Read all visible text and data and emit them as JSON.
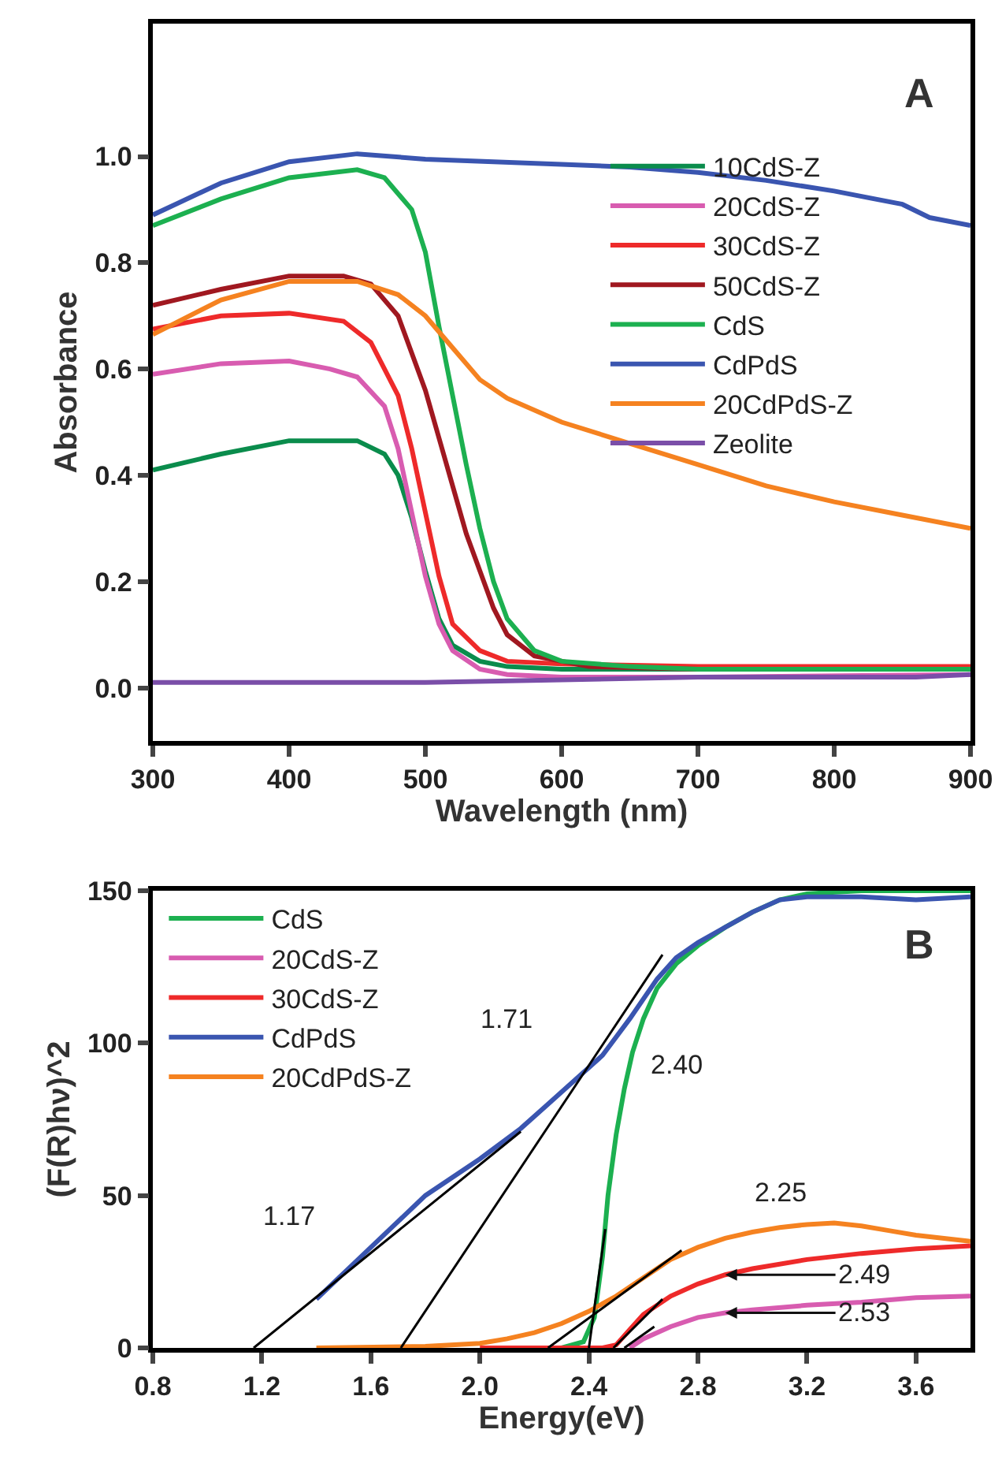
{
  "chart_data": [
    {
      "type": "line",
      "xlabel": "Wavelength (nm)",
      "ylabel": "Absorbance",
      "xlim": [
        300,
        900
      ],
      "xticks": [
        300,
        400,
        500,
        600,
        700,
        800,
        900
      ],
      "ylim": [
        -0.1,
        1.25
      ],
      "yticks": [
        {
          "value": 0,
          "label": "0.0"
        },
        0.2,
        0.4,
        0.6,
        0.8,
        {
          "value": 1,
          "label": "1.0"
        }
      ],
      "grid": false,
      "legend": "right",
      "marker": "none",
      "line_style": "solid",
      "annotations": [
        "A"
      ],
      "series": [
        {
          "name": "10CdS-Z",
          "color": "#0a8c4c",
          "x": [
            300,
            350,
            400,
            450,
            470,
            480,
            490,
            500,
            510,
            520,
            540,
            560,
            600,
            700,
            800,
            900
          ],
          "values": [
            0.41,
            0.44,
            0.465,
            0.465,
            0.44,
            0.4,
            0.32,
            0.22,
            0.13,
            0.08,
            0.05,
            0.04,
            0.035,
            0.035,
            0.035,
            0.035
          ]
        },
        {
          "name": "20CdS-Z",
          "color": "#d85cb0",
          "x": [
            300,
            350,
            400,
            430,
            450,
            470,
            480,
            490,
            500,
            510,
            520,
            540,
            560,
            600,
            700,
            900
          ],
          "values": [
            0.59,
            0.61,
            0.615,
            0.6,
            0.585,
            0.53,
            0.45,
            0.33,
            0.21,
            0.12,
            0.07,
            0.035,
            0.025,
            0.02,
            0.02,
            0.025
          ]
        },
        {
          "name": "30CdS-Z",
          "color": "#ee2a2a",
          "x": [
            300,
            350,
            400,
            440,
            460,
            480,
            490,
            500,
            510,
            520,
            540,
            560,
            600,
            700,
            900
          ],
          "values": [
            0.675,
            0.7,
            0.705,
            0.69,
            0.65,
            0.55,
            0.45,
            0.33,
            0.21,
            0.12,
            0.07,
            0.05,
            0.045,
            0.04,
            0.04
          ]
        },
        {
          "name": "50CdS-Z",
          "color": "#a01820",
          "x": [
            300,
            350,
            400,
            440,
            460,
            480,
            500,
            510,
            520,
            530,
            540,
            550,
            560,
            580,
            620,
            700,
            900
          ],
          "values": [
            0.72,
            0.75,
            0.775,
            0.775,
            0.76,
            0.7,
            0.56,
            0.47,
            0.38,
            0.29,
            0.22,
            0.15,
            0.1,
            0.06,
            0.04,
            0.035,
            0.035
          ]
        },
        {
          "name": "CdS",
          "color": "#1cb050",
          "x": [
            300,
            350,
            400,
            450,
            470,
            490,
            500,
            510,
            520,
            530,
            540,
            550,
            560,
            580,
            600,
            650,
            700,
            900
          ],
          "values": [
            0.87,
            0.92,
            0.96,
            0.975,
            0.96,
            0.9,
            0.82,
            0.68,
            0.55,
            0.42,
            0.3,
            0.2,
            0.13,
            0.07,
            0.05,
            0.04,
            0.035,
            0.035
          ]
        },
        {
          "name": "CdPdS",
          "color": "#3a55b0",
          "x": [
            300,
            350,
            400,
            450,
            500,
            600,
            650,
            700,
            750,
            800,
            850,
            870,
            900
          ],
          "values": [
            0.89,
            0.95,
            0.99,
            1.005,
            0.995,
            0.985,
            0.98,
            0.97,
            0.955,
            0.935,
            0.91,
            0.885,
            0.87
          ]
        },
        {
          "name": "20CdPdS-Z",
          "color": "#f58220",
          "x": [
            300,
            350,
            400,
            450,
            480,
            500,
            520,
            540,
            560,
            600,
            650,
            700,
            750,
            800,
            850,
            900
          ],
          "values": [
            0.665,
            0.73,
            0.765,
            0.765,
            0.74,
            0.7,
            0.64,
            0.58,
            0.545,
            0.5,
            0.46,
            0.42,
            0.38,
            0.35,
            0.325,
            0.3
          ]
        },
        {
          "name": "Zeolite",
          "color": "#7a4ea8",
          "x": [
            300,
            400,
            500,
            600,
            700,
            800,
            860,
            900
          ],
          "values": [
            0.01,
            0.01,
            0.01,
            0.015,
            0.02,
            0.02,
            0.02,
            0.025
          ]
        }
      ]
    },
    {
      "type": "line",
      "xlabel": "Energy(eV)",
      "ylabel": "(F(R)hν)^2",
      "xlim": [
        0.8,
        3.8
      ],
      "xticks": [
        0.8,
        1.2,
        1.6,
        {
          "value": 2,
          "label": "2.0"
        },
        2.4,
        2.8,
        3.2,
        3.6
      ],
      "ylim": [
        0,
        150
      ],
      "yticks": [
        0,
        50,
        100,
        150
      ],
      "grid": false,
      "legend": "top left",
      "marker": "none",
      "line_style": "solid",
      "annotations": [
        "B",
        "1.17",
        "1.71",
        "2.40",
        "2.25",
        {
          "text": "2.49",
          "x": 2.9,
          "y": 24
        },
        {
          "text": "2.53",
          "x": 2.9,
          "y": 11.5
        }
      ],
      "series": [
        {
          "name": "CdS",
          "color": "#1cb050",
          "x": [
            2.3,
            2.38,
            2.42,
            2.45,
            2.47,
            2.5,
            2.53,
            2.56,
            2.6,
            2.65,
            2.72,
            2.8,
            2.9,
            3.0,
            3.1,
            3.2,
            3.4,
            3.6,
            3.8
          ],
          "values": [
            0,
            2,
            10,
            30,
            50,
            70,
            85,
            97,
            108,
            118,
            126,
            132,
            138,
            143,
            147,
            149,
            150,
            150,
            150
          ]
        },
        {
          "name": "20CdS-Z",
          "color": "#d85cb0",
          "x": [
            2.55,
            2.6,
            2.7,
            2.8,
            2.9,
            3.0,
            3.2,
            3.4,
            3.6,
            3.8
          ],
          "values": [
            0,
            3,
            7,
            10,
            11.5,
            12.5,
            14,
            15,
            16.5,
            17
          ]
        },
        {
          "name": "30CdS-Z",
          "color": "#ee2a2a",
          "x": [
            2.0,
            2.45,
            2.5,
            2.55,
            2.6,
            2.7,
            2.8,
            2.9,
            3.0,
            3.2,
            3.4,
            3.6,
            3.8
          ],
          "values": [
            0,
            0,
            1,
            6,
            11,
            17,
            21,
            24,
            26,
            29,
            31,
            32.5,
            33.5
          ]
        },
        {
          "name": "CdPdS",
          "color": "#3a55b0",
          "x": [
            1.4,
            1.6,
            1.8,
            2.0,
            2.15,
            2.25,
            2.35,
            2.45,
            2.55,
            2.65,
            2.72,
            2.8,
            2.9,
            3.0,
            3.1,
            3.2,
            3.4,
            3.6,
            3.8
          ],
          "values": [
            16,
            33,
            50,
            62,
            72,
            80,
            88,
            96,
            108,
            121,
            128,
            133,
            138,
            143,
            147,
            148,
            148,
            147,
            148
          ]
        },
        {
          "name": "20CdPdS-Z",
          "color": "#f58220",
          "x": [
            1.4,
            1.8,
            2.0,
            2.1,
            2.2,
            2.3,
            2.4,
            2.5,
            2.6,
            2.7,
            2.8,
            2.9,
            3.0,
            3.1,
            3.2,
            3.3,
            3.4,
            3.5,
            3.6,
            3.8
          ],
          "values": [
            0,
            0.5,
            1.5,
            3,
            5,
            8,
            12,
            17,
            23,
            29,
            33,
            36,
            38,
            39.5,
            40.5,
            41,
            40,
            38.5,
            37,
            35
          ]
        },
        {
          "color": "#000000",
          "x": [
            1.17,
            2.15
          ],
          "values": [
            0,
            71
          ]
        },
        {
          "color": "#000000",
          "x": [
            1.71,
            2.67
          ],
          "values": [
            0,
            129
          ]
        },
        {
          "color": "#000000",
          "x": [
            2.4,
            2.46
          ],
          "values": [
            0,
            39
          ]
        },
        {
          "color": "#000000",
          "x": [
            2.25,
            2.74
          ],
          "values": [
            0,
            32
          ]
        },
        {
          "color": "#000000",
          "x": [
            2.49,
            2.67
          ],
          "values": [
            0,
            16
          ]
        },
        {
          "color": "#000000",
          "x": [
            2.53,
            2.64
          ],
          "values": [
            0,
            7
          ]
        }
      ]
    }
  ]
}
